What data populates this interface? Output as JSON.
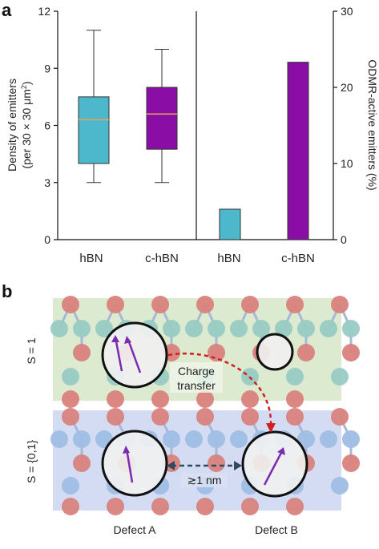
{
  "panel_a_label": "a",
  "panel_b_label": "b",
  "chart_data": [
    {
      "type": "box",
      "categories": [
        "hBN",
        "c-hBN"
      ],
      "boxes": [
        {
          "name": "hBN",
          "min": 3,
          "q1": 4.0,
          "median": 6.3,
          "q3": 7.5,
          "max": 11,
          "color": "#4db8cc"
        },
        {
          "name": "c-hBN",
          "min": 3,
          "q1": 4.75,
          "median": 6.6,
          "q3": 8.0,
          "max": 10,
          "color": "#8a0ea6"
        }
      ],
      "ylabel": "Density of emitters",
      "ylabel_line2": "(per 30 × 30 μm",
      "ylabel_sup": "2",
      "ylabel_end": ")",
      "ylim": [
        0,
        12
      ],
      "yticks": [
        "0",
        "3",
        "6",
        "9",
        "12"
      ],
      "median_color": "#e8a25a"
    },
    {
      "type": "bar",
      "categories": [
        "hBN",
        "c-hBN"
      ],
      "values": [
        4,
        23.3
      ],
      "colors": [
        "#4db8cc",
        "#8a0ea6"
      ],
      "ylabel": "ODMR-active emitters (%)",
      "ylim": [
        0,
        30
      ],
      "yticks": [
        "0",
        "10",
        "20",
        "30"
      ]
    }
  ],
  "diagram": {
    "top_spin_label": "S = 1",
    "bottom_spin_label": "S = {0,1}",
    "charge_transfer_line1": "Charge",
    "charge_transfer_line2": "transfer",
    "distance_label": "≳1 nm",
    "defect_a_label": "Defect A",
    "defect_b_label": "Defect B",
    "colors": {
      "top_layer_bg": "#dcebcf",
      "bottom_layer_bg": "#d3dcf2",
      "atom_red": "#d9827d",
      "atom_teal": "#98cbc4",
      "atom_blue": "#9fbde4",
      "bond": "#a9b7d6",
      "spin_arrow": "#7a2bb0",
      "transfer_arrow": "#d11f1f"
    }
  }
}
